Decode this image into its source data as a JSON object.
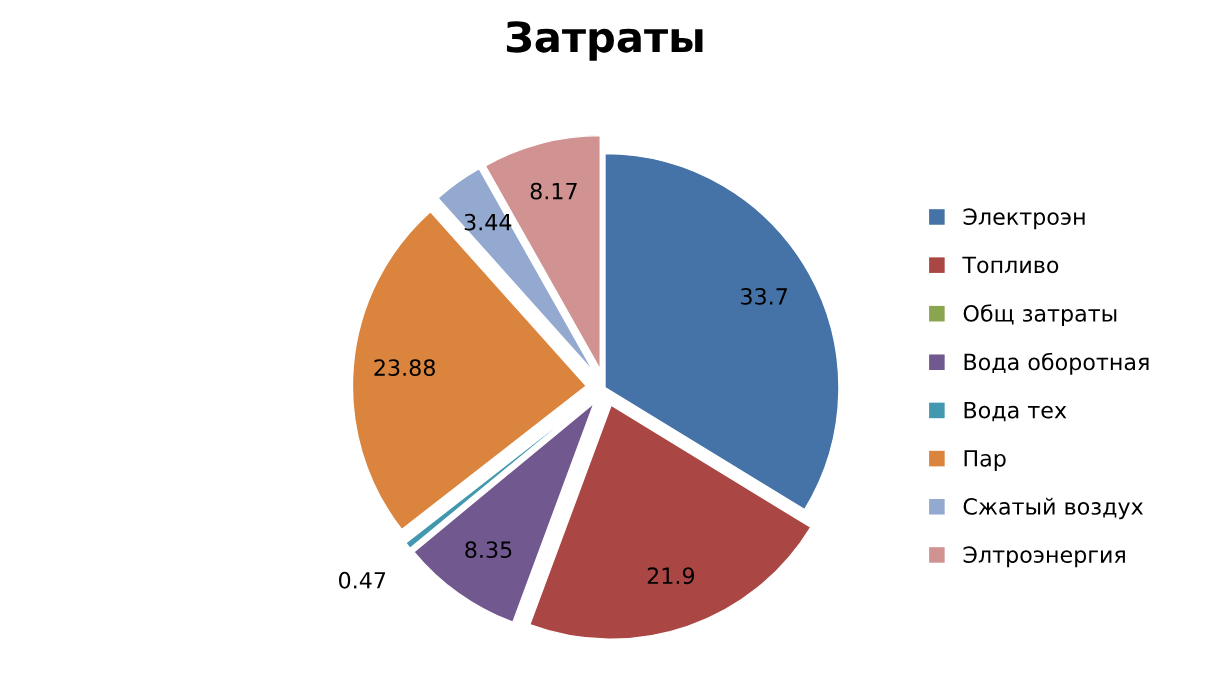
{
  "chart_data": {
    "type": "pie",
    "title": "Затраты",
    "categories": [
      "Электроэн",
      "Топливо",
      "Общ затраты",
      "Вода оборотная",
      "Вода тех",
      "Пар",
      "Сжатый воздух",
      "Элтроэнергия"
    ],
    "values": [
      33.7,
      21.9,
      0,
      8.35,
      0.47,
      23.88,
      3.44,
      8.17
    ],
    "value_labels": [
      "33.7",
      "21.9",
      null,
      "8.35",
      "0.47",
      "23.88",
      "3.44",
      "8.17"
    ],
    "colors": [
      "#4572a7",
      "#aa4643",
      "#89a54e",
      "#71588f",
      "#4198af",
      "#db843d",
      "#93a9cf",
      "#d19392"
    ],
    "legend": "right"
  }
}
